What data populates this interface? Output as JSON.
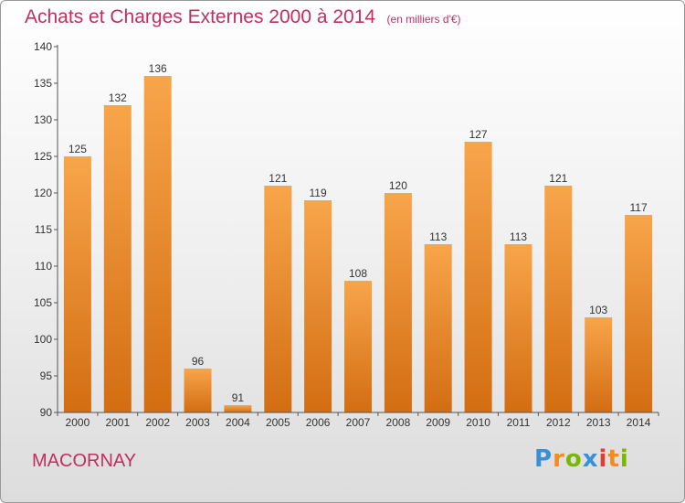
{
  "title": "Achats et Charges Externes 2000 à 2014",
  "unit_label": "(en milliers d'€)",
  "town": "MACORNAY",
  "logo": {
    "letters": [
      "P",
      "r",
      "o",
      "x",
      "i",
      "t",
      "i"
    ],
    "colors": [
      "#3a8fd6",
      "#f28c1e",
      "#7ab800",
      "#3a8fd6",
      "#e03c31",
      "#f28c1e",
      "#7ab800"
    ]
  },
  "colors": {
    "bar_top": "#f8a54a",
    "bar_bottom": "#d36d12",
    "text": "#c0305e"
  },
  "chart_data": {
    "type": "bar",
    "categories": [
      "2000",
      "2001",
      "2002",
      "2003",
      "2004",
      "2005",
      "2006",
      "2007",
      "2008",
      "2009",
      "2010",
      "2011",
      "2012",
      "2013",
      "2014"
    ],
    "values": [
      125,
      132,
      136,
      96,
      91,
      121,
      119,
      108,
      120,
      113,
      127,
      113,
      121,
      103,
      117
    ],
    "ylim": [
      90,
      140
    ],
    "yticks": [
      90,
      95,
      100,
      105,
      110,
      115,
      120,
      125,
      130,
      135,
      140
    ],
    "grid": false,
    "title": "Achats et Charges Externes 2000 à 2014",
    "xlabel": "",
    "ylabel": ""
  }
}
